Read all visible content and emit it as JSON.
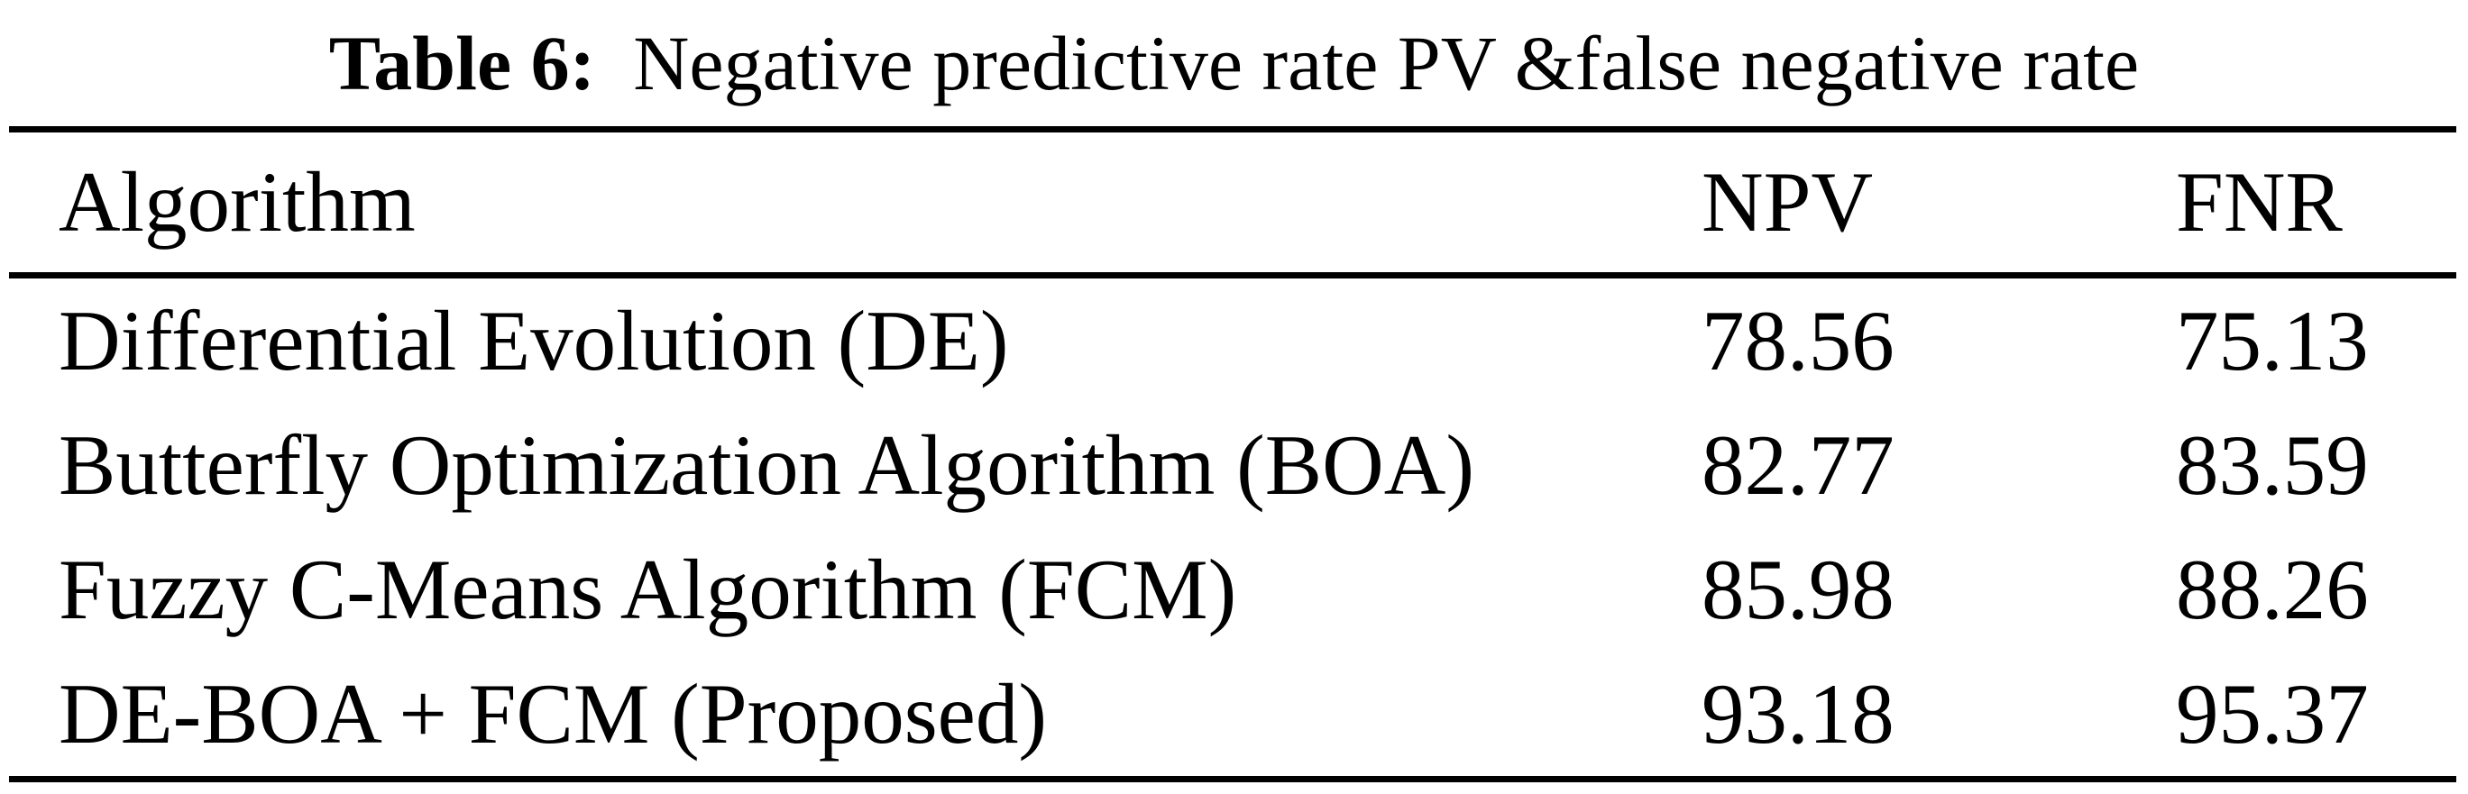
{
  "colors": {
    "background": "#ffffff",
    "text": "#000000",
    "rule": "#000000"
  },
  "table": {
    "caption": {
      "label": "Table 6:",
      "text": "Negative predictive rate PV &false negative rate"
    },
    "columns": {
      "algorithm": "Algorithm",
      "npv": "NPV",
      "fnr": "FNR"
    },
    "rows": [
      {
        "algorithm": "Differential Evolution (DE)",
        "npv": "78.56",
        "fnr": "75.13"
      },
      {
        "algorithm": "Butterfly Optimization Algorithm (BOA)",
        "npv": "82.77",
        "fnr": "83.59"
      },
      {
        "algorithm": "Fuzzy C-Means Algorithm (FCM)",
        "npv": "85.98",
        "fnr": "88.26"
      },
      {
        "algorithm": "DE-BOA + FCM (Proposed)",
        "npv": "93.18",
        "fnr": "95.37"
      }
    ]
  }
}
